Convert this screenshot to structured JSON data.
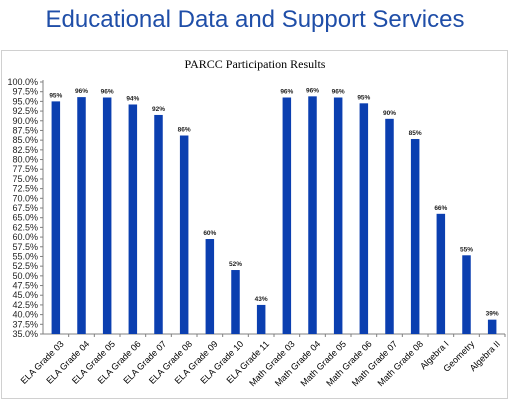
{
  "page": {
    "heading": "Educational Data and Support Services"
  },
  "chart_data": {
    "type": "bar",
    "title": "PARCC Participation Results",
    "xlabel": "",
    "ylabel": "",
    "ylim": [
      35,
      100
    ],
    "ytick_step": 2.5,
    "bar_color": "#0b3fb0",
    "grid": false,
    "legend": "none",
    "categories": [
      "ELA Grade 03",
      "ELA Grade 04",
      "ELA Grade 05",
      "ELA Grade 06",
      "ELA Grade 07",
      "ELA Grade 08",
      "ELA Grade 09",
      "ELA Grade 10",
      "ELA Grade 11",
      "Math Grade 03",
      "Math Grade 04",
      "Math Grade 05",
      "Math Grade 06",
      "Math Grade 07",
      "Math Grade 08",
      "Algebra I",
      "Geometry",
      "Algebra II"
    ],
    "values": [
      95.0,
      96.1,
      96.0,
      94.2,
      91.5,
      86.2,
      59.5,
      51.5,
      42.5,
      96.0,
      96.3,
      96.0,
      94.5,
      90.5,
      85.3,
      66.0,
      55.3,
      38.7
    ],
    "labels": [
      "95%",
      "96%",
      "96%",
      "94%",
      "92%",
      "86%",
      "60%",
      "52%",
      "43%",
      "96%",
      "96%",
      "96%",
      "95%",
      "90%",
      "85%",
      "66%",
      "55%",
      "39%"
    ]
  }
}
